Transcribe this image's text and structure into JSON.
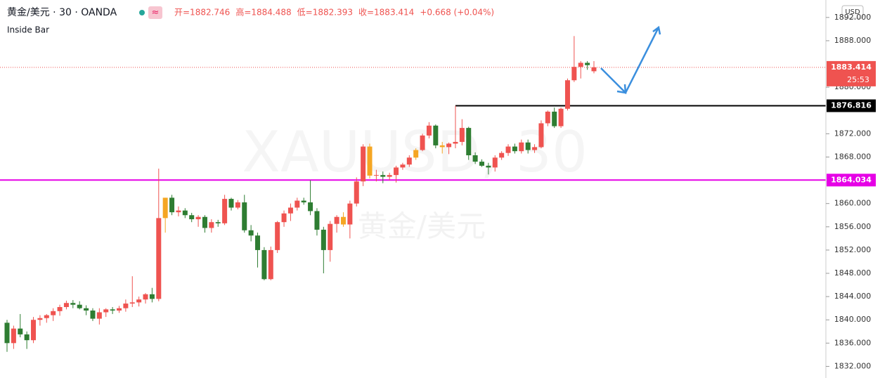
{
  "chart_data": {
    "type": "candlestick",
    "title": "黄金/美元 · 30 · OANDA",
    "subtitle": "Inside Bar",
    "ohlc_labels": [
      "开=1882.746",
      "高=1884.488",
      "低=1882.393",
      "收=1883.414",
      "+0.668 (+0.04%)"
    ],
    "watermark": [
      "XAUUSD, 30",
      "黄金/美元"
    ],
    "currency": "USD",
    "last_price": 1883.414,
    "countdown": "25:53",
    "horizontal_lines": [
      {
        "value": 1876.816,
        "color": "#000000"
      },
      {
        "value": 1864.034,
        "color": "#e600e6"
      }
    ],
    "up_color": "#ef5350",
    "down_color": "#2e7d32",
    "inside_bar_color": "#f5a623",
    "grid": false,
    "ylim": [
      1830,
      1895
    ],
    "yticks": [
      {
        "value": 1832,
        "label": "1832.000"
      },
      {
        "value": 1836,
        "label": "1836.000"
      },
      {
        "value": 1840,
        "label": "1840.000"
      },
      {
        "value": 1844,
        "label": "1844.000"
      },
      {
        "value": 1848,
        "label": "1848.000"
      },
      {
        "value": 1852,
        "label": "1852.000"
      },
      {
        "value": 1856,
        "label": "1856.000"
      },
      {
        "value": 1860,
        "label": "1860.000"
      },
      {
        "value": 1868,
        "label": "1868.000"
      },
      {
        "value": 1872,
        "label": "1872.000"
      },
      {
        "value": 1880,
        "label": "1880.000"
      },
      {
        "value": 1888,
        "label": "1888.000"
      },
      {
        "value": 1892,
        "label": "1892.000"
      }
    ],
    "open": [
      1839.5,
      1836,
      1838.5,
      1837.5,
      1836.5,
      1840,
      1840.3,
      1840.8,
      1841.5,
      1842.2,
      1842.9,
      1842.6,
      1842,
      1841.6,
      1840.2,
      1841.3,
      1841.8,
      1841.6,
      1842,
      1842.8,
      1843,
      1843.5,
      1844.4,
      1843.6,
      1857.5,
      1861,
      1858.5,
      1858.8,
      1858,
      1857.3,
      1857.7,
      1855.8,
      1856.8,
      1856.6,
      1860.8,
      1859.3,
      1860.2,
      1855.4,
      1854.5,
      1852,
      1847,
      1852,
      1856.8,
      1858.3,
      1859.3,
      1860.5,
      1860.2,
      1858.7,
      1855.5,
      1852,
      1856.5,
      1857.7,
      1856.4,
      1860,
      1863.8,
      1869.8,
      1864.8,
      1864.9,
      1864.6,
      1864.9,
      1866.2,
      1866.7,
      1867.9,
      1869.2,
      1871.7,
      1873.4,
      1870,
      1869.7,
      1870.3,
      1870.6,
      1873,
      1868.3,
      1867.2,
      1866.5,
      1866.2,
      1867.9,
      1868.7,
      1869.8,
      1869,
      1870.5,
      1869.2,
      1869.7,
      1873.8,
      1875.8,
      1873.3,
      1876.3,
      1881.2,
      1883.5,
      1884.2,
      1882.746
    ],
    "high": [
      1840,
      1839,
      1841,
      1838,
      1840.5,
      1840.8,
      1841,
      1842,
      1842.6,
      1843.3,
      1843.4,
      1843.2,
      1842.5,
      1842,
      1842,
      1842,
      1842.2,
      1842.4,
      1843.5,
      1847.5,
      1844,
      1844.6,
      1845.5,
      1866,
      1861,
      1861.5,
      1859.5,
      1859.2,
      1858.4,
      1858,
      1858,
      1857.3,
      1857.2,
      1861.5,
      1861,
      1860.6,
      1861.5,
      1856.3,
      1855,
      1852.5,
      1852.6,
      1857,
      1858.8,
      1860,
      1861,
      1861,
      1864,
      1859.2,
      1856,
      1857,
      1858,
      1858.5,
      1860.5,
      1864.5,
      1870.2,
      1870.3,
      1865.8,
      1865.5,
      1865.3,
      1866.5,
      1867,
      1868.3,
      1869.5,
      1872,
      1874,
      1873.6,
      1870.6,
      1870.5,
      1876.816,
      1874.5,
      1873.2,
      1868.8,
      1867.6,
      1867,
      1868.3,
      1869,
      1870.2,
      1870.3,
      1871,
      1871,
      1870.2,
      1874.3,
      1876,
      1876.5,
      1876.5,
      1881.5,
      1888.8,
      1884.5,
      1884.5,
      1884.488
    ],
    "low": [
      1834.5,
      1835,
      1837,
      1835,
      1836,
      1839,
      1839.5,
      1839.8,
      1840.7,
      1841.8,
      1842,
      1841.8,
      1840.8,
      1839.8,
      1839.2,
      1840.5,
      1841,
      1841.2,
      1841.4,
      1842.2,
      1842.3,
      1842.8,
      1843,
      1843.2,
      1855,
      1858,
      1857.8,
      1857.5,
      1856.8,
      1856,
      1855,
      1855,
      1856,
      1856.3,
      1858.8,
      1859,
      1855,
      1853.5,
      1849,
      1846.8,
      1846.8,
      1851.5,
      1856,
      1857,
      1858.8,
      1859.8,
      1858,
      1854.5,
      1848,
      1850,
      1855,
      1856,
      1854,
      1859.5,
      1863,
      1864.3,
      1863.8,
      1863.5,
      1864,
      1863.6,
      1865.8,
      1866.3,
      1867.5,
      1869,
      1871.2,
      1869.5,
      1868.6,
      1868.5,
      1869.5,
      1870,
      1867.5,
      1866.8,
      1866.3,
      1865,
      1865.5,
      1867.5,
      1868.2,
      1868.6,
      1868.6,
      1868.6,
      1868.7,
      1869.5,
      1873.3,
      1873,
      1873,
      1876,
      1880.9,
      1881.5,
      1883,
      1882.393
    ],
    "close": [
      1836,
      1838.5,
      1837.5,
      1836.5,
      1840,
      1840.3,
      1840.8,
      1841.5,
      1842.2,
      1842.9,
      1842.6,
      1842,
      1841.6,
      1840.2,
      1841.3,
      1841.8,
      1841.6,
      1842,
      1842.8,
      1843,
      1843.5,
      1844.4,
      1843.6,
      1857.5,
      1861,
      1858.5,
      1858.8,
      1858,
      1857.3,
      1857.7,
      1855.8,
      1856.8,
      1856.6,
      1860.8,
      1859.3,
      1860.2,
      1855.4,
      1854.5,
      1852,
      1847,
      1852,
      1856.8,
      1858.3,
      1859.3,
      1860.5,
      1860.2,
      1858.7,
      1855.5,
      1852,
      1856.5,
      1857.7,
      1856.4,
      1860,
      1863.8,
      1869.8,
      1864.8,
      1864.9,
      1864.6,
      1864.9,
      1866.2,
      1866.7,
      1867.9,
      1869.2,
      1871.7,
      1873.4,
      1870,
      1869.7,
      1870.3,
      1870.6,
      1873,
      1868.3,
      1867.2,
      1866.5,
      1866.2,
      1867.9,
      1868.7,
      1869.8,
      1869,
      1870.5,
      1869.2,
      1869.7,
      1873.8,
      1875.8,
      1873.3,
      1876.3,
      1881.2,
      1883.5,
      1884.2,
      1883.8,
      1883.414
    ],
    "inside_bar": [
      false,
      false,
      false,
      false,
      false,
      false,
      false,
      false,
      false,
      false,
      false,
      false,
      false,
      false,
      false,
      false,
      false,
      false,
      false,
      false,
      false,
      false,
      false,
      false,
      true,
      false,
      false,
      false,
      false,
      false,
      false,
      false,
      false,
      false,
      false,
      false,
      false,
      false,
      false,
      false,
      false,
      false,
      false,
      false,
      false,
      false,
      false,
      false,
      false,
      false,
      false,
      true,
      false,
      false,
      false,
      true,
      false,
      false,
      false,
      false,
      false,
      false,
      true,
      false,
      false,
      false,
      true,
      false,
      false,
      false,
      false,
      false,
      false,
      false,
      false,
      false,
      false,
      false,
      false,
      false,
      false,
      false,
      false,
      false,
      false,
      false,
      false,
      false,
      false,
      false
    ]
  }
}
